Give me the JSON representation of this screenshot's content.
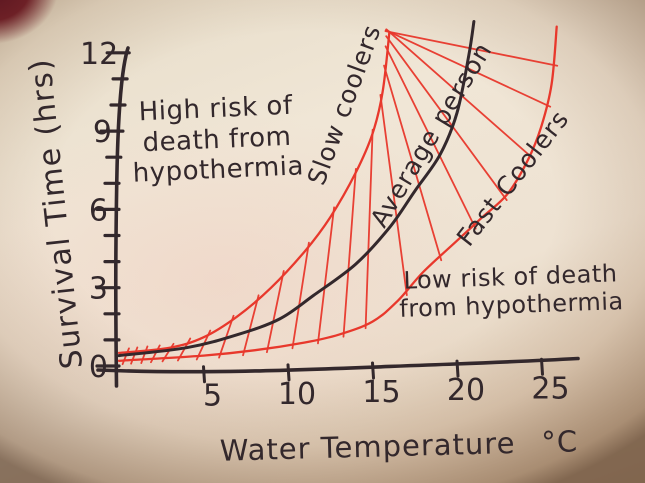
{
  "figure": {
    "description": "Photograph of a hand-drawn survival-time chart for cold water immersion",
    "colors": {
      "ink": "#33282c",
      "red_ink": "#e8382c",
      "paper_center": "#f0e6d6",
      "paper_edge": "#c7a98b",
      "photo_corner": "#581520"
    }
  },
  "chart_data": {
    "type": "line",
    "title": "",
    "xlabel": "Water Temperature",
    "xlabel_unit": "°C",
    "ylabel": "Survival Time (hrs)",
    "xlim": [
      0,
      26
    ],
    "ylim": [
      0,
      13
    ],
    "grid": false,
    "x_ticks": [
      5,
      10,
      15,
      20,
      25
    ],
    "y_ticks_major": [
      0,
      3,
      6,
      9,
      12
    ],
    "y_ticks_minor": [
      1,
      2,
      4,
      5,
      7,
      8,
      10,
      11
    ],
    "series": [
      {
        "name": "Slow coolers",
        "color": "red",
        "x": [
          0,
          3,
          5,
          7,
          9,
          11,
          12.5,
          14,
          15,
          15.6,
          16
        ],
        "y": [
          0.5,
          0.7,
          1.1,
          1.9,
          3.0,
          4.4,
          5.7,
          7.4,
          8.9,
          10.5,
          12.8
        ],
        "label": {
          "t": 13.8,
          "h": 9.9,
          "angle": -70
        }
      },
      {
        "name": "Average person",
        "color": "black",
        "x": [
          0,
          4,
          7,
          9.5,
          11.5,
          14,
          16,
          17.5,
          19,
          20,
          20.7,
          21
        ],
        "y": [
          0.4,
          0.7,
          1.2,
          1.8,
          2.7,
          3.9,
          5.3,
          6.7,
          8.1,
          9.7,
          11.9,
          13.2
        ],
        "label": {
          "t": 18.9,
          "h": 8.7,
          "angle": -59
        }
      },
      {
        "name": "Fast Coolers",
        "color": "red",
        "x": [
          0,
          5,
          8,
          11,
          13,
          15,
          16.5,
          18,
          20,
          21.5,
          23,
          24.2,
          25,
          25.6,
          25.9
        ],
        "y": [
          0.2,
          0.4,
          0.6,
          0.9,
          1.2,
          1.7,
          2.5,
          3.6,
          4.8,
          5.7,
          6.6,
          7.9,
          9.2,
          10.8,
          13.0
        ],
        "label": {
          "t": 23.7,
          "h": 7.0,
          "angle": -52
        }
      }
    ],
    "hatching": {
      "between": [
        "Slow coolers",
        "Fast Coolers"
      ],
      "color": "red",
      "pairs_t_slow_t_fast": [
        [
          0.5,
          0.3
        ],
        [
          1.0,
          0.8
        ],
        [
          1.6,
          1.4
        ],
        [
          2.3,
          2.0
        ],
        [
          3.1,
          2.7
        ],
        [
          4.1,
          3.6
        ],
        [
          5.3,
          4.7
        ],
        [
          6.7,
          6.0
        ],
        [
          8.2,
          7.4
        ],
        [
          9.7,
          8.8
        ],
        [
          11.2,
          10.3
        ],
        [
          12.7,
          11.8
        ],
        [
          14.0,
          13.3
        ],
        [
          15.0,
          14.6
        ],
        [
          15.5,
          17.0
        ],
        [
          15.75,
          19.0
        ],
        [
          15.88,
          21.0
        ],
        [
          15.95,
          22.8
        ],
        [
          16.0,
          24.3
        ],
        [
          16.0,
          25.3
        ],
        [
          16.0,
          25.7
        ]
      ]
    },
    "annotations": [
      {
        "id": "high-risk",
        "lines": [
          "High risk of",
          "death from",
          "hypothermia"
        ]
      },
      {
        "id": "low-risk",
        "lines": [
          "Low risk of death",
          "from hypothermia"
        ]
      }
    ]
  }
}
